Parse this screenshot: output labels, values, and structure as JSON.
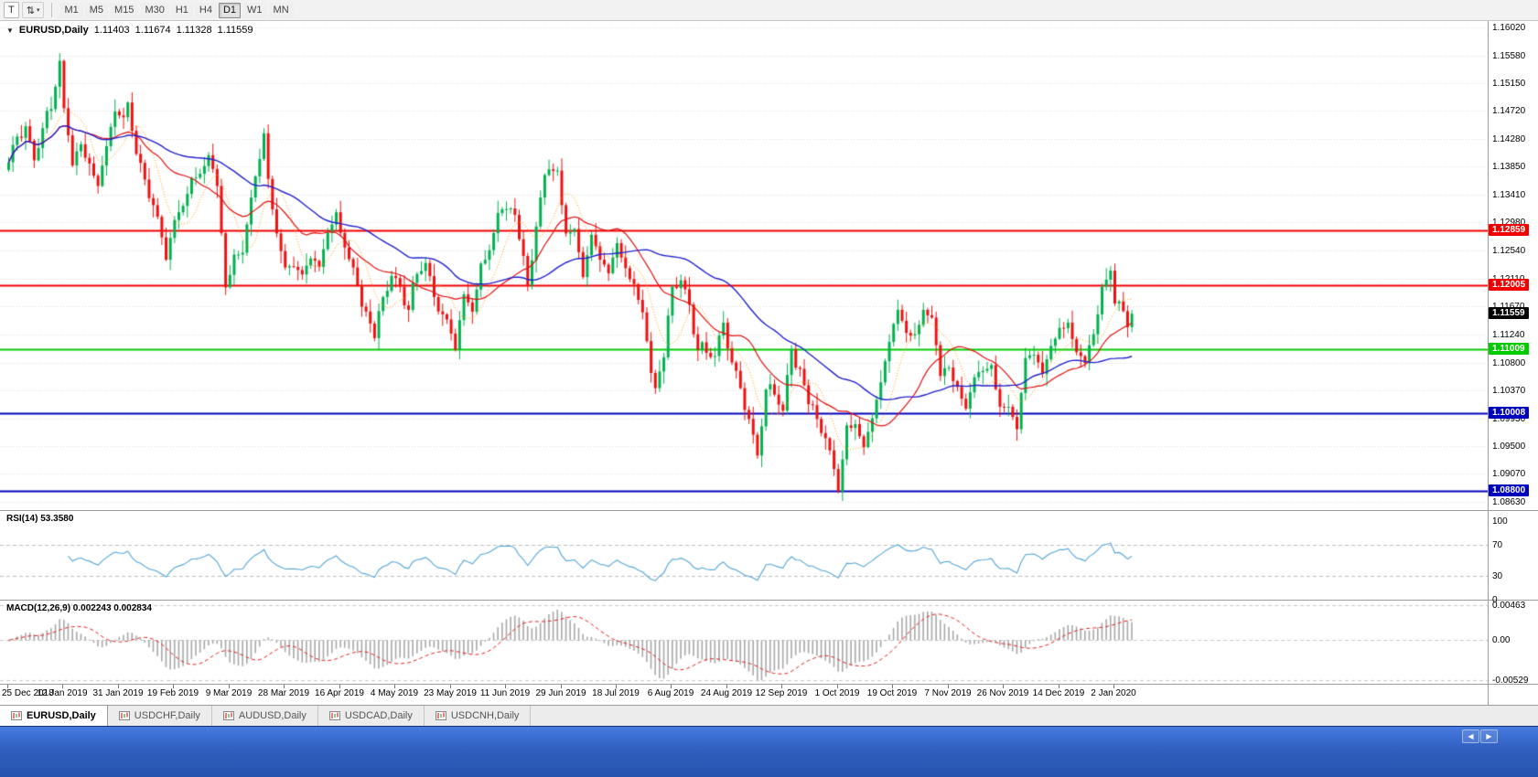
{
  "icons": {
    "tool_t": "T",
    "sort_arrows": "⇅",
    "caret_down": "▾",
    "chart_dropdown": "▼",
    "tab_scroll_left": "◀",
    "tab_scroll_right": "▶"
  },
  "toolbar": {
    "timeframes": [
      {
        "label": "M1",
        "active": false
      },
      {
        "label": "M5",
        "active": false
      },
      {
        "label": "M15",
        "active": false
      },
      {
        "label": "M30",
        "active": false
      },
      {
        "label": "H1",
        "active": false
      },
      {
        "label": "H4",
        "active": false
      },
      {
        "label": "D1",
        "active": true
      },
      {
        "label": "W1",
        "active": false
      },
      {
        "label": "MN",
        "active": false
      }
    ]
  },
  "chart": {
    "header": {
      "symbol": "EURUSD,Daily",
      "open": "1.11403",
      "high": "1.11674",
      "low": "1.11328",
      "close": "1.11559"
    },
    "price_axis": [
      "1.16020",
      "1.15580",
      "1.15150",
      "1.14720",
      "1.14280",
      "1.13850",
      "1.13410",
      "1.12980",
      "1.12540",
      "1.12110",
      "1.11670",
      "1.11240",
      "1.10800",
      "1.10370",
      "1.09930",
      "1.09500",
      "1.09070",
      "1.08630"
    ],
    "hlines": [
      {
        "label": "1.12859",
        "price": 1.12859,
        "color": "#f20000"
      },
      {
        "label": "1.12005",
        "price": 1.12005,
        "color": "#f20000"
      },
      {
        "label": "1.11009",
        "price": 1.11009,
        "color": "#00cc00"
      },
      {
        "label": "1.10008",
        "price": 1.10008,
        "color": "#0000bf"
      },
      {
        "label": "1.08800",
        "price": 1.088,
        "color": "#0000bf"
      }
    ],
    "current_price": {
      "label": "1.11559",
      "price": 1.11559,
      "color": "#000000"
    }
  },
  "rsi": {
    "header": "RSI(14) 53.3580",
    "levels": [
      {
        "label": "100",
        "value": 100
      },
      {
        "label": "70",
        "value": 70
      },
      {
        "label": "30",
        "value": 30
      },
      {
        "label": "0",
        "value": 0
      }
    ],
    "line_color": "#55a5d8"
  },
  "macd": {
    "header": "MACD(12,26,9) 0.002243 0.002834",
    "levels": [
      {
        "label": "0.00463",
        "value": 0.00463
      },
      {
        "label": "0.00",
        "value": 0
      },
      {
        "label": "-0.00529",
        "value": -0.00529
      }
    ],
    "hist_color": "#a8a8a8",
    "signal_color": "#e02020"
  },
  "date_axis": [
    "25 Dec 2018",
    "12 Jan 2019",
    "31 Jan 2019",
    "19 Feb 2019",
    "9 Mar 2019",
    "28 Mar 2019",
    "16 Apr 2019",
    "4 May 2019",
    "23 May 2019",
    "11 Jun 2019",
    "29 Jun 2019",
    "18 Jul 2019",
    "6 Aug 2019",
    "24 Aug 2019",
    "12 Sep 2019",
    "1 Oct 2019",
    "19 Oct 2019",
    "7 Nov 2019",
    "26 Nov 2019",
    "14 Dec 2019",
    "2 Jan 2020"
  ],
  "tabs": [
    {
      "label": "EURUSD,Daily",
      "active": true
    },
    {
      "label": "USDCHF,Daily",
      "active": false
    },
    {
      "label": "AUDUSD,Daily",
      "active": false
    },
    {
      "label": "USDCAD,Daily",
      "active": false
    },
    {
      "label": "USDCNH,Daily",
      "active": false
    }
  ],
  "chart_data": {
    "type": "candlestick",
    "symbol": "EURUSD",
    "timeframe": "D1",
    "bar_count": 265,
    "x_label_step": 13,
    "y_range": [
      1.085,
      1.1612
    ],
    "last_ohlc": {
      "open": 1.11403,
      "high": 1.11674,
      "low": 1.11328,
      "close": 1.11559
    },
    "horizontal_levels": [
      1.12859,
      1.12005,
      1.11009,
      1.10008,
      1.088
    ],
    "close_anchors": [
      [
        0,
        1.1392
      ],
      [
        2,
        1.1432
      ],
      [
        4,
        1.1448
      ],
      [
        6,
        1.1395
      ],
      [
        8,
        1.1445
      ],
      [
        10,
        1.1475
      ],
      [
        12,
        1.155
      ],
      [
        13,
        1.1468
      ],
      [
        15,
        1.14
      ],
      [
        17,
        1.1418
      ],
      [
        19,
        1.138
      ],
      [
        21,
        1.1362
      ],
      [
        23,
        1.1412
      ],
      [
        25,
        1.1482
      ],
      [
        27,
        1.1448
      ],
      [
        28,
        1.1485
      ],
      [
        30,
        1.1405
      ],
      [
        32,
        1.1365
      ],
      [
        34,
        1.1325
      ],
      [
        37,
        1.125
      ],
      [
        39,
        1.1298
      ],
      [
        41,
        1.133
      ],
      [
        44,
        1.1368
      ],
      [
        47,
        1.1395
      ],
      [
        49,
        1.1368
      ],
      [
        51,
        1.1195
      ],
      [
        53,
        1.1238
      ],
      [
        55,
        1.1258
      ],
      [
        57,
        1.1332
      ],
      [
        59,
        1.1408
      ],
      [
        60,
        1.1437
      ],
      [
        61,
        1.1352
      ],
      [
        63,
        1.1285
      ],
      [
        65,
        1.1222
      ],
      [
        67,
        1.1238
      ],
      [
        69,
        1.121
      ],
      [
        71,
        1.1252
      ],
      [
        73,
        1.1225
      ],
      [
        75,
        1.1288
      ],
      [
        77,
        1.1302
      ],
      [
        79,
        1.1262
      ],
      [
        81,
        1.122
      ],
      [
        83,
        1.118
      ],
      [
        86,
        1.1118
      ],
      [
        88,
        1.1182
      ],
      [
        90,
        1.1215
      ],
      [
        92,
        1.1198
      ],
      [
        94,
        1.1162
      ],
      [
        96,
        1.1218
      ],
      [
        98,
        1.1235
      ],
      [
        100,
        1.1182
      ],
      [
        102,
        1.1155
      ],
      [
        105,
        1.111
      ],
      [
        107,
        1.1182
      ],
      [
        109,
        1.1165
      ],
      [
        111,
        1.1222
      ],
      [
        113,
        1.1258
      ],
      [
        115,
        1.1305
      ],
      [
        117,
        1.1332
      ],
      [
        119,
        1.1308
      ],
      [
        122,
        1.12
      ],
      [
        124,
        1.1292
      ],
      [
        126,
        1.1372
      ],
      [
        127,
        1.1392
      ],
      [
        129,
        1.1365
      ],
      [
        131,
        1.1285
      ],
      [
        133,
        1.1282
      ],
      [
        135,
        1.1222
      ],
      [
        137,
        1.1272
      ],
      [
        139,
        1.125
      ],
      [
        141,
        1.1215
      ],
      [
        143,
        1.1272
      ],
      [
        145,
        1.1215
      ],
      [
        147,
        1.1205
      ],
      [
        149,
        1.115
      ],
      [
        152,
        1.104
      ],
      [
        154,
        1.1088
      ],
      [
        156,
        1.1198
      ],
      [
        158,
        1.1208
      ],
      [
        160,
        1.117
      ],
      [
        162,
        1.11
      ],
      [
        164,
        1.1095
      ],
      [
        166,
        1.109
      ],
      [
        168,
        1.1142
      ],
      [
        170,
        1.108
      ],
      [
        172,
        1.104
      ],
      [
        174,
        1.0992
      ],
      [
        176,
        1.0935
      ],
      [
        178,
        1.1038
      ],
      [
        180,
        1.103
      ],
      [
        182,
        1.1005
      ],
      [
        184,
        1.11
      ],
      [
        186,
        1.107
      ],
      [
        188,
        1.1015
      ],
      [
        190,
        1.0992
      ],
      [
        192,
        1.0962
      ],
      [
        195,
        1.089
      ],
      [
        197,
        1.0968
      ],
      [
        199,
        1.0988
      ],
      [
        201,
        1.0942
      ],
      [
        203,
        1.1002
      ],
      [
        205,
        1.1042
      ],
      [
        207,
        1.1122
      ],
      [
        209,
        1.1158
      ],
      [
        211,
        1.1132
      ],
      [
        213,
        1.1112
      ],
      [
        215,
        1.1165
      ],
      [
        217,
        1.1142
      ],
      [
        219,
        1.1072
      ],
      [
        221,
        1.107
      ],
      [
        223,
        1.1032
      ],
      [
        225,
        1.1015
      ],
      [
        227,
        1.1052
      ],
      [
        229,
        1.1078
      ],
      [
        231,
        1.1062
      ],
      [
        233,
        1.1015
      ],
      [
        235,
        1.1005
      ],
      [
        237,
        1.0985
      ],
      [
        239,
        1.108
      ],
      [
        241,
        1.1102
      ],
      [
        243,
        1.1058
      ],
      [
        245,
        1.1112
      ],
      [
        247,
        1.1122
      ],
      [
        249,
        1.1145
      ],
      [
        251,
        1.1088
      ],
      [
        253,
        1.1092
      ],
      [
        255,
        1.1122
      ],
      [
        257,
        1.1188
      ],
      [
        259,
        1.123
      ],
      [
        260,
        1.1172
      ],
      [
        261,
        1.117
      ],
      [
        262,
        1.116
      ],
      [
        263,
        1.1146
      ],
      [
        264,
        1.1156
      ]
    ],
    "noise": [
      0.0007,
      -0.001,
      0.0004,
      -0.0006,
      0.0012,
      -0.0003,
      0.0008,
      -0.0013,
      0.0002,
      0.001,
      -0.0007,
      0.0005,
      -0.0011,
      0.0014,
      -0.0004,
      0.0006,
      -0.0009
    ],
    "wick": [
      0.0008,
      0.0014,
      0.0005,
      0.0018,
      0.0007,
      0.0011,
      0.0003,
      0.0015,
      0.0009,
      0.0006,
      0.0019,
      0.0004,
      0.0012,
      0.0002,
      0.0016
    ],
    "candle_colors": {
      "up": "#00b14f",
      "down": "#ee1111"
    },
    "moving_averages": [
      {
        "period": 8,
        "color": "#ff9800",
        "dash": [
          1,
          2
        ],
        "width": 1
      },
      {
        "period": 20,
        "color": "#e01010",
        "dash": [],
        "width": 1.2
      },
      {
        "period": 45,
        "color": "#2222cc",
        "dash": [],
        "width": 1.4
      }
    ],
    "indicators": {
      "rsi": {
        "period": 14,
        "current": 53.358
      },
      "macd": {
        "fast": 12,
        "slow": 26,
        "signal": 9,
        "current_macd": 0.002243,
        "current_signal": 0.002834
      }
    }
  }
}
